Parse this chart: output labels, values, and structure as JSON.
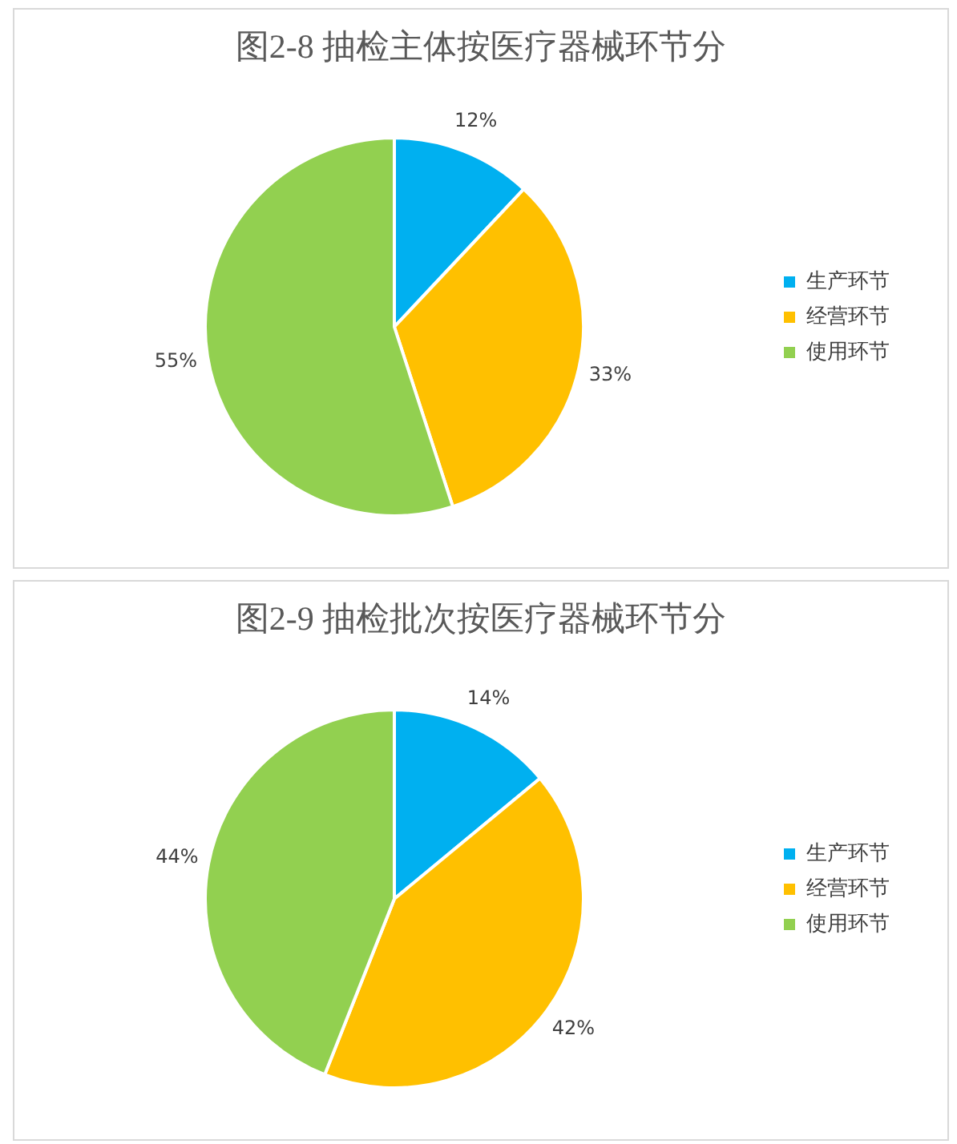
{
  "chart_data": [
    {
      "type": "pie",
      "title": "图2-8  抽检主体按医疗器械环节分",
      "categories": [
        "生产环节",
        "经营环节",
        "使用环节"
      ],
      "values": [
        12,
        33,
        55
      ],
      "colors": [
        "#00b0f0",
        "#ffc000",
        "#92d050"
      ],
      "value_labels": [
        "12%",
        "33%",
        "55%"
      ],
      "legend": "right"
    },
    {
      "type": "pie",
      "title": "图2-9  抽检批次按医疗器械环节分",
      "categories": [
        "生产环节",
        "经营环节",
        "使用环节"
      ],
      "values": [
        14,
        42,
        44
      ],
      "colors": [
        "#00b0f0",
        "#ffc000",
        "#92d050"
      ],
      "value_labels": [
        "14%",
        "42%",
        "44%"
      ],
      "legend": "right"
    }
  ]
}
